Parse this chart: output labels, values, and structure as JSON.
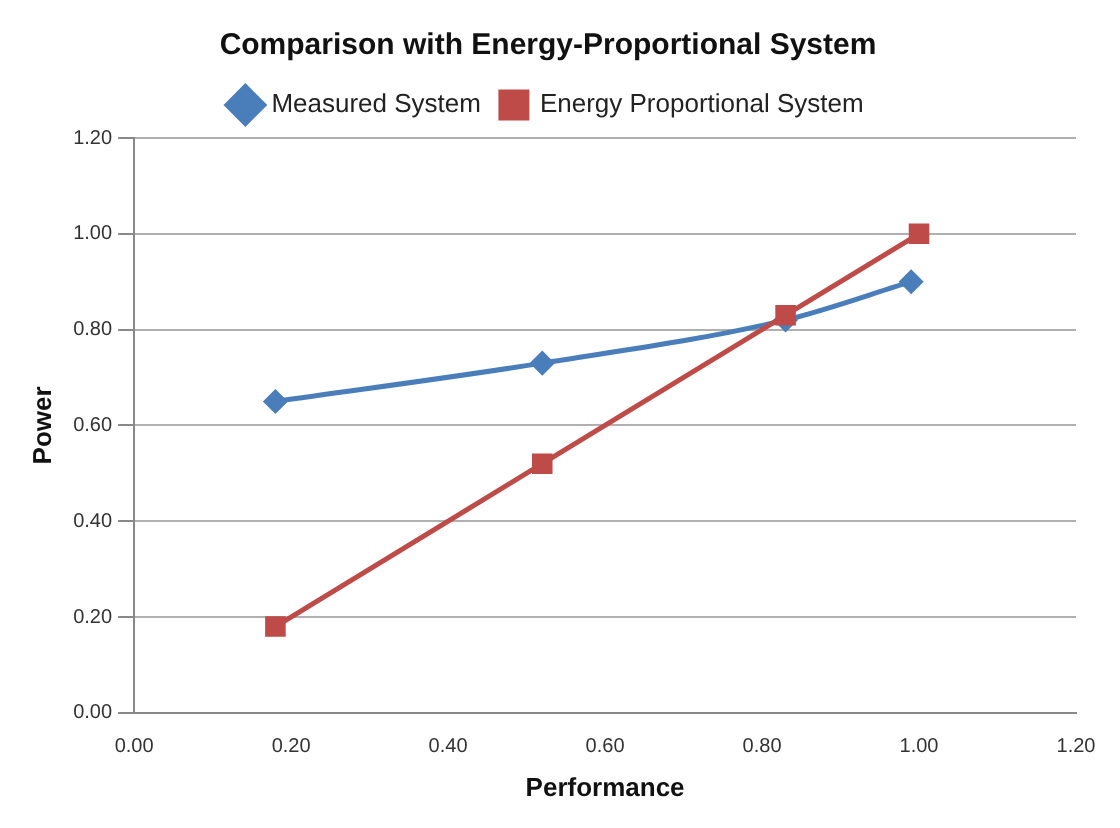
{
  "chart_data": {
    "type": "line",
    "title": "Comparison with Energy-Proportional System",
    "xlabel": "Performance",
    "ylabel": "Power",
    "series": [
      {
        "name": "Measured System",
        "color": "#4a7ebb",
        "x": [
          0.18,
          0.52,
          0.83,
          0.99
        ],
        "values": [
          0.65,
          0.73,
          0.82,
          0.9
        ],
        "marker": "diamond"
      },
      {
        "name": "Energy Proportional System",
        "color": "#be4b48",
        "x": [
          0.18,
          0.52,
          0.83,
          1.0
        ],
        "values": [
          0.18,
          0.52,
          0.83,
          1.0
        ],
        "marker": "square"
      }
    ],
    "xlim": [
      0,
      1.2
    ],
    "xticks": [
      {
        "value": 0,
        "label": "0.00"
      },
      {
        "value": 0.2,
        "label": "0.20"
      },
      {
        "value": 0.4,
        "label": "0.40"
      },
      {
        "value": 0.6,
        "label": "0.60"
      },
      {
        "value": 0.8,
        "label": "0.80"
      },
      {
        "value": 1,
        "label": "1.00"
      },
      {
        "value": 1.2,
        "label": "1.20"
      }
    ],
    "ylim": [
      0,
      1.2
    ],
    "yticks": [
      {
        "value": 0,
        "label": "0.00"
      },
      {
        "value": 0.2,
        "label": "0.20"
      },
      {
        "value": 0.4,
        "label": "0.40"
      },
      {
        "value": 0.6,
        "label": "0.60"
      },
      {
        "value": 0.8,
        "label": "0.80"
      },
      {
        "value": 1,
        "label": "1.00"
      },
      {
        "value": 1.2,
        "label": "1.20"
      }
    ],
    "grid": "y",
    "legend": "top",
    "line_style": "solid"
  }
}
